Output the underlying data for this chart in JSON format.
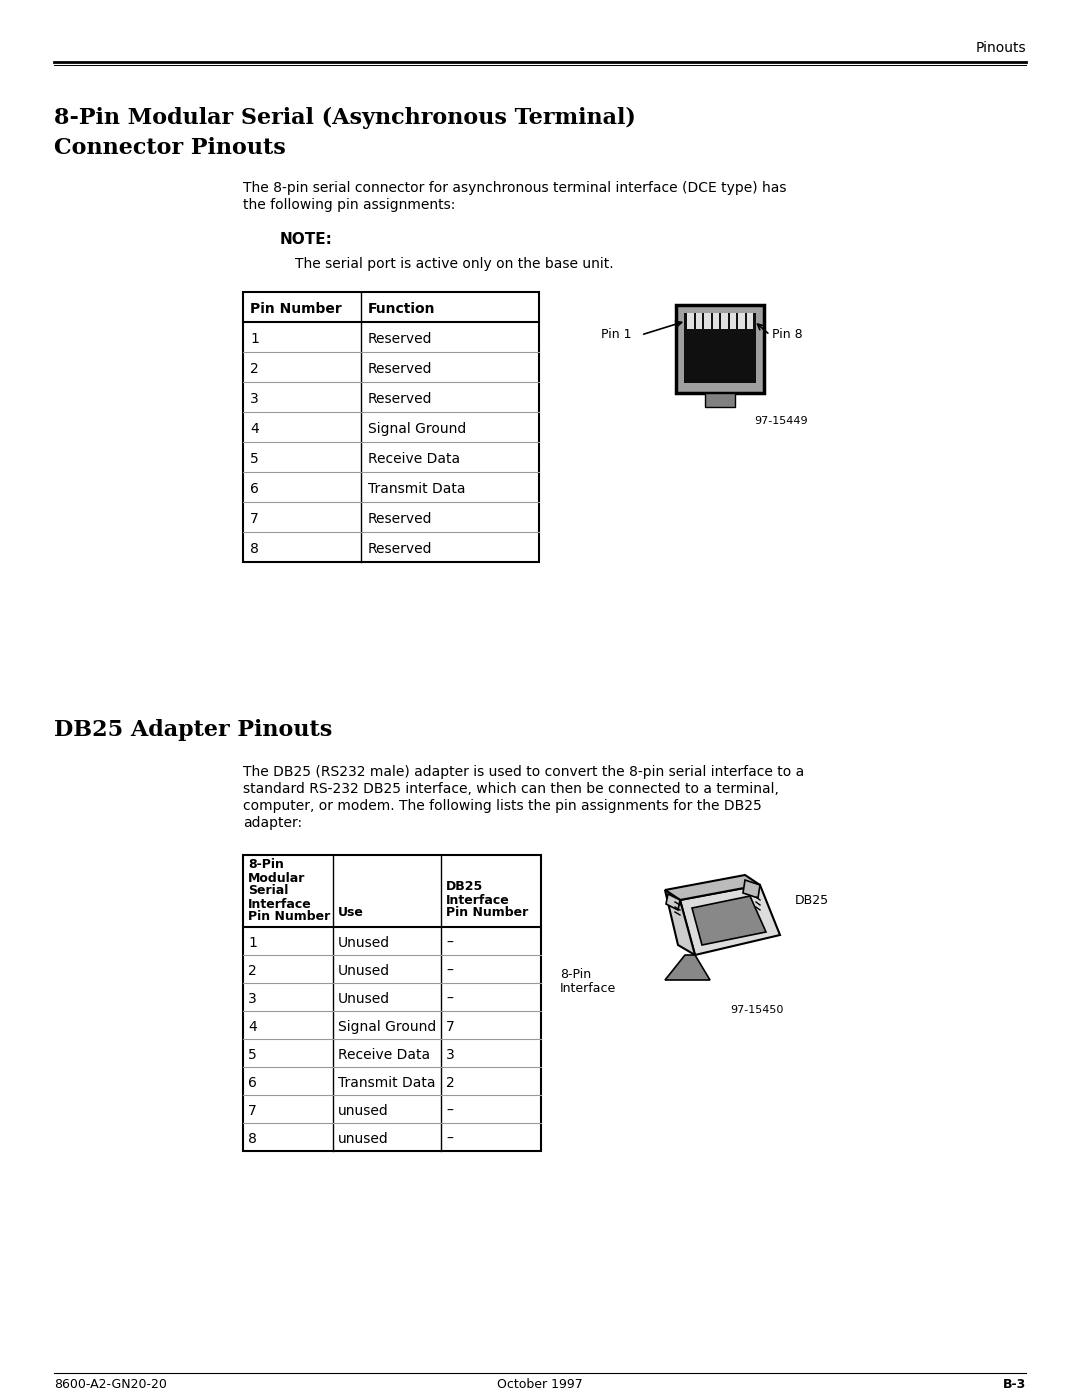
{
  "page_header": "Pinouts",
  "section1_title_line1": "8-Pin Modular Serial (Asynchronous Terminal)",
  "section1_title_line2": "Connector Pinouts",
  "section1_body_l1": "The 8-pin serial connector for asynchronous terminal interface (DCE type) has",
  "section1_body_l2": "the following pin assignments:",
  "note_label": "NOTE:",
  "note_text": "The serial port is active only on the base unit.",
  "table1_headers": [
    "Pin Number",
    "Function"
  ],
  "table1_rows": [
    [
      "1",
      "Reserved"
    ],
    [
      "2",
      "Reserved"
    ],
    [
      "3",
      "Reserved"
    ],
    [
      "4",
      "Signal Ground"
    ],
    [
      "5",
      "Receive Data"
    ],
    [
      "6",
      "Transmit Data"
    ],
    [
      "7",
      "Reserved"
    ],
    [
      "8",
      "Reserved"
    ]
  ],
  "connector1_label": "97-15449",
  "section2_title": "DB25 Adapter Pinouts",
  "section2_body_l1": "The DB25 (RS232 male) adapter is used to convert the 8-pin serial interface to a",
  "section2_body_l2": "standard RS-232 DB25 interface, which can then be connected to a terminal,",
  "section2_body_l3": "computer, or modem. The following lists the pin assignments for the DB25",
  "section2_body_l4": "adapter:",
  "table2_col1_header": [
    "8-Pin",
    "Modular",
    "Serial",
    "Interface",
    "Pin Number"
  ],
  "table2_col2_header": [
    "Use"
  ],
  "table2_col3_header": [
    "DB25",
    "Interface",
    "Pin Number"
  ],
  "table2_rows": [
    [
      "1",
      "Unused",
      "–"
    ],
    [
      "2",
      "Unused",
      "–"
    ],
    [
      "3",
      "Unused",
      "–"
    ],
    [
      "4",
      "Signal Ground",
      "7"
    ],
    [
      "5",
      "Receive Data",
      "3"
    ],
    [
      "6",
      "Transmit Data",
      "2"
    ],
    [
      "7",
      "unused",
      "–"
    ],
    [
      "8",
      "unused",
      "–"
    ]
  ],
  "connector2_label": "97-15450",
  "footer_left": "8600-A2-GN20-20",
  "footer_center": "October 1997",
  "footer_right": "B-3",
  "bg_color": "#ffffff",
  "text_color": "#000000"
}
